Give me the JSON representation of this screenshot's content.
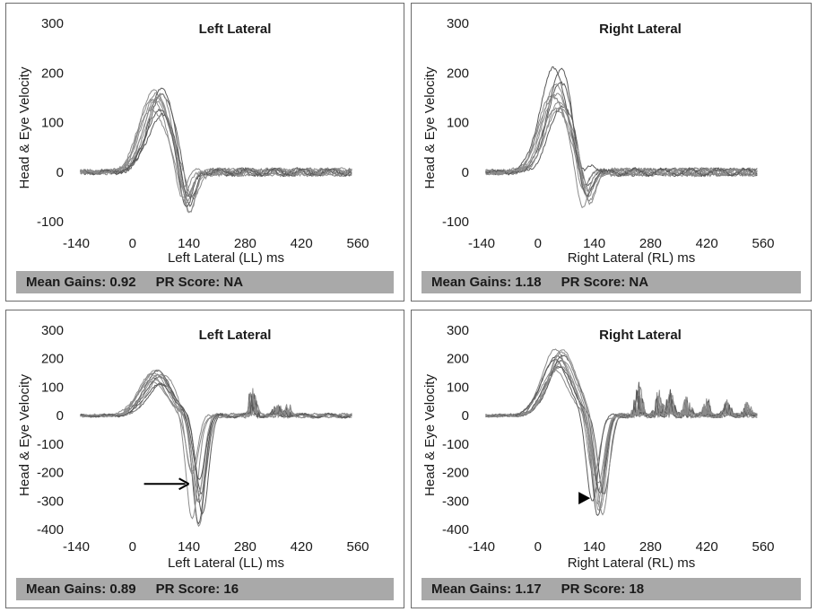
{
  "chart_data": [
    {
      "type": "line",
      "title": "Left Lateral",
      "xlabel": "Left Lateral (LL) ms",
      "ylabel": "Head & Eye Velocity",
      "x_ticks": [
        "-140",
        "0",
        "140",
        "280",
        "420",
        "560"
      ],
      "y_ticks": [
        "300",
        "200",
        "100",
        "0",
        "-100"
      ],
      "xlim": [
        -140,
        560
      ],
      "ylim": [
        -100,
        300
      ],
      "footer": {
        "gain_label": "Mean Gains: 0.92",
        "pr_label": "PR Score: NA"
      },
      "series": [
        {
          "name": "traces",
          "peak": 155,
          "peak_t": 60,
          "trough": -90,
          "trough_t": 135,
          "saccades": []
        }
      ]
    },
    {
      "type": "line",
      "title": "Right Lateral",
      "xlabel": "Right Lateral (RL) ms",
      "ylabel": "Head & Eye Velocity",
      "x_ticks": [
        "-140",
        "0",
        "140",
        "280",
        "420",
        "560"
      ],
      "y_ticks": [
        "300",
        "200",
        "100",
        "0",
        "-100"
      ],
      "xlim": [
        -140,
        560
      ],
      "ylim": [
        -100,
        300
      ],
      "footer": {
        "gain_label": "Mean Gains: 1.18",
        "pr_label": "PR Score: NA"
      },
      "series": [
        {
          "name": "traces",
          "peak": 180,
          "peak_t": 50,
          "trough": -80,
          "trough_t": 115,
          "saccades": []
        }
      ]
    },
    {
      "type": "line",
      "title": "Left Lateral",
      "xlabel": "Left Lateral (LL) ms",
      "ylabel": "Head & Eye Velocity",
      "x_ticks": [
        "-140",
        "0",
        "140",
        "280",
        "420",
        "560"
      ],
      "y_ticks": [
        "300",
        "200",
        "100",
        "0",
        "-100",
        "-200",
        "-300",
        "-400"
      ],
      "xlim": [
        -140,
        560
      ],
      "ylim": [
        -400,
        300
      ],
      "footer": {
        "gain_label": "Mean Gains: 0.89",
        "pr_label": "PR Score: 16"
      },
      "annotation": {
        "type": "arrow",
        "direction": "right",
        "target_x": 140,
        "target_y": -240
      },
      "series": [
        {
          "name": "traces",
          "peak": 150,
          "peak_t": 60,
          "trough": -370,
          "trough_t": 160,
          "saccades": [
            [
              300,
              110
            ],
            [
              360,
              40
            ],
            [
              385,
              35
            ]
          ]
        }
      ]
    },
    {
      "type": "line",
      "title": "Right Lateral",
      "xlabel": "Right Lateral (RL) ms",
      "ylabel": "Head & Eye Velocity",
      "x_ticks": [
        "-140",
        "0",
        "140",
        "280",
        "420",
        "560"
      ],
      "y_ticks": [
        "300",
        "200",
        "100",
        "0",
        "-100",
        "-200",
        "-300",
        "-400"
      ],
      "xlim": [
        -140,
        560
      ],
      "ylim": [
        -400,
        300
      ],
      "footer": {
        "gain_label": "Mean Gains: 1.17",
        "pr_label": "PR Score: 18"
      },
      "annotation": {
        "type": "arrowhead",
        "direction": "right",
        "target_x": 130,
        "target_y": -290
      },
      "series": [
        {
          "name": "traces",
          "peak": 200,
          "peak_t": 50,
          "trough": -380,
          "trough_t": 150,
          "saccades": [
            [
              250,
              120
            ],
            [
              300,
              90
            ],
            [
              330,
              80
            ],
            [
              370,
              70
            ],
            [
              420,
              60
            ],
            [
              470,
              55
            ],
            [
              520,
              50
            ]
          ]
        }
      ]
    }
  ]
}
